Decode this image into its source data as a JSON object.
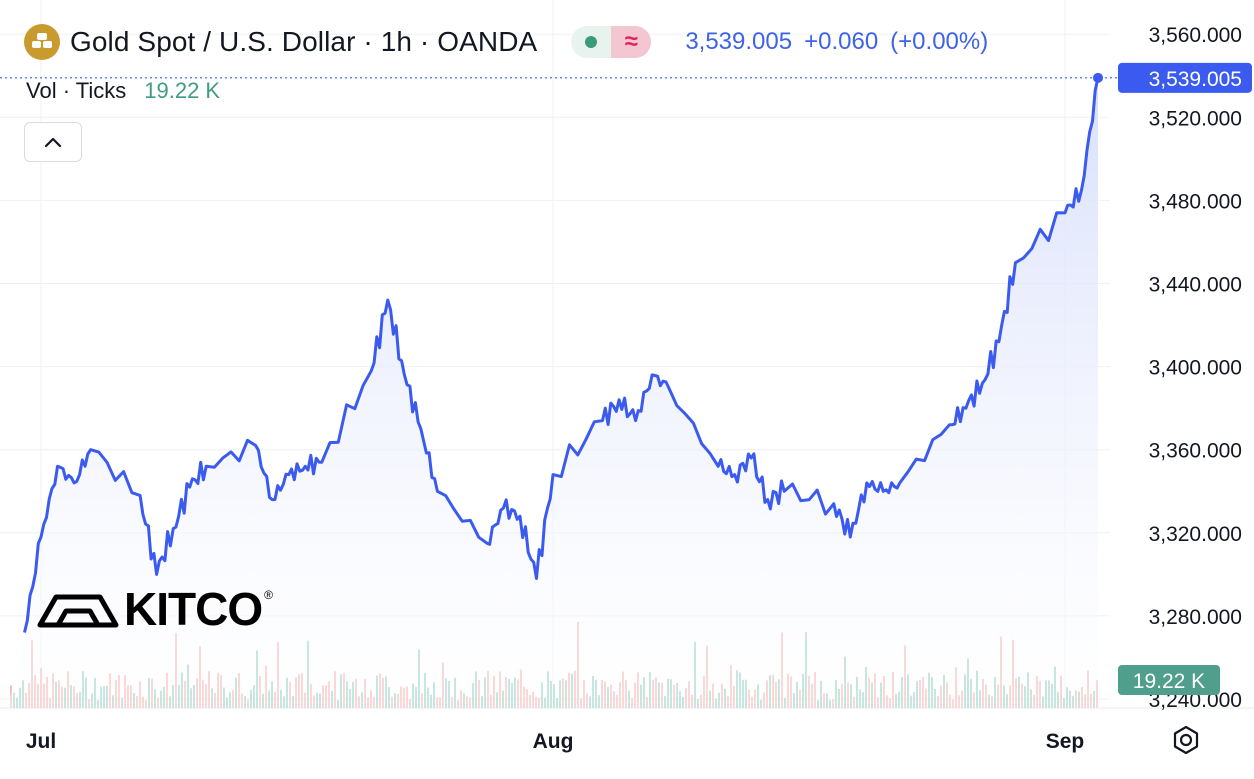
{
  "header": {
    "title": "Gold Spot / U.S. Dollar · 1h · OANDA",
    "price": "3,539.005",
    "change": "+0.060",
    "change_pct": "(+0.00%)",
    "icons": [
      "gold-bars-icon",
      "market-open-dot-icon",
      "wave-icon"
    ]
  },
  "volume_legend": {
    "label": "Vol · Ticks",
    "value": "19.22 K"
  },
  "logo": {
    "text": "KITCO",
    "reg": "®"
  },
  "colors": {
    "line": "#3b5bf0",
    "area_top": "#d6defb",
    "up_volume": "#7fc7b5",
    "down_volume": "#f2a7a7",
    "last_price_label_bg": "#3b5bf0",
    "volume_label_bg": "#4f9f8c",
    "grid": "#f0f1f4"
  },
  "chart_data": {
    "type": "line",
    "title": "Gold Spot / U.S. Dollar · 1h · OANDA",
    "xlabel": "",
    "ylabel": "",
    "x_ticks": [
      "Jul",
      "Aug",
      "Sep"
    ],
    "y_ticks": [
      "3,560.000",
      "3,520.000",
      "3,480.000",
      "3,440.000",
      "3,400.000",
      "3,360.000",
      "3,320.000",
      "3,280.000",
      "3,240.000"
    ],
    "ylim": [
      3240,
      3565
    ],
    "grid": true,
    "last_price_label": "3,539.005",
    "volume_value_label": "19.22 K",
    "series": [
      {
        "name": "Gold Spot / U.S. Dollar",
        "x": [
          "2025-06-30",
          "2025-07-01",
          "2025-07-02",
          "2025-07-03",
          "2025-07-04",
          "2025-07-07",
          "2025-07-08",
          "2025-07-09",
          "2025-07-10",
          "2025-07-11",
          "2025-07-14",
          "2025-07-15",
          "2025-07-16",
          "2025-07-17",
          "2025-07-18",
          "2025-07-21",
          "2025-07-22",
          "2025-07-23",
          "2025-07-24",
          "2025-07-25",
          "2025-07-28",
          "2025-07-29",
          "2025-07-30",
          "2025-07-31",
          "2025-08-01",
          "2025-08-04",
          "2025-08-05",
          "2025-08-06",
          "2025-08-07",
          "2025-08-08",
          "2025-08-11",
          "2025-08-12",
          "2025-08-13",
          "2025-08-14",
          "2025-08-15",
          "2025-08-18",
          "2025-08-19",
          "2025-08-20",
          "2025-08-21",
          "2025-08-22",
          "2025-08-25",
          "2025-08-26",
          "2025-08-27",
          "2025-08-28",
          "2025-08-29",
          "2025-09-01",
          "2025-09-02",
          "2025-09-03"
        ],
        "values": [
          3272,
          3318,
          3352,
          3344,
          3360,
          3338,
          3300,
          3322,
          3342,
          3352,
          3362,
          3336,
          3348,
          3352,
          3354,
          3398,
          3432,
          3396,
          3370,
          3340,
          3315,
          3332,
          3328,
          3298,
          3348,
          3374,
          3384,
          3374,
          3396,
          3390,
          3352,
          3348,
          3356,
          3336,
          3340,
          3334,
          3318,
          3344,
          3340,
          3344,
          3372,
          3380,
          3392,
          3412,
          3450,
          3474,
          3485,
          3539
        ]
      }
    ]
  }
}
